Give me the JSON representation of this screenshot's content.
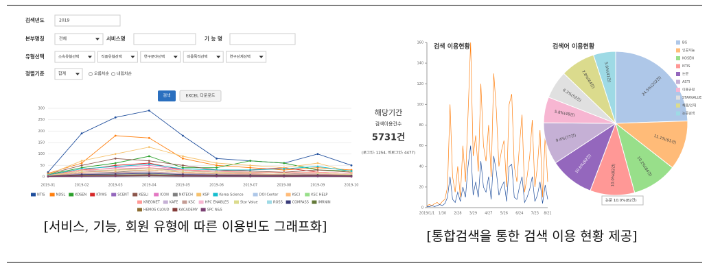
{
  "search_form": {
    "year_label": "검색년도",
    "year_value": "2019",
    "hq_label": "본부명칭",
    "hq_value": "전체",
    "service_label": "서비스명",
    "function_label": "기 능 명",
    "type_label": "유형선택",
    "type_selects": [
      "소속유형선택",
      "직종유형선택",
      "연구분야선택",
      "이용목적선택",
      "연구단계선택"
    ],
    "sort_label": "정렬기준",
    "sort_value": "합계",
    "sort_options": [
      "오름차순",
      "내림차순"
    ],
    "buttons": [
      "검색",
      "EXCEL 다운로드"
    ]
  },
  "left_caption": "[서비스, 기능, 회원 유형에 따른 이용빈도 그래프화]",
  "stats": {
    "period": "해당기간",
    "count_label": "검색이용건수",
    "total": "5731건",
    "breakdown": "(로그인: 1254, 비로그인: 4477)"
  },
  "tooltip": "논문 10.0%(82건)",
  "right_caption": "[통합검색을 통한 검색 이용 현황 제공]",
  "chart_data": [
    {
      "type": "line",
      "categories": [
        "2019-01",
        "2019-02",
        "2019-03",
        "2019-04",
        "2019-05",
        "2019-06",
        "2019-07",
        "2019-08",
        "2019-09",
        "2019-10"
      ],
      "ylim": [
        0,
        300
      ],
      "yticks": [
        0,
        50,
        100,
        150,
        200,
        250,
        300
      ],
      "grid": true,
      "series": [
        {
          "name": "NTIS",
          "color": "#1f4e9c",
          "values": [
            20,
            190,
            260,
            290,
            180,
            80,
            70,
            60,
            100,
            50
          ]
        },
        {
          "name": "NDSL",
          "color": "#ff7f0e",
          "values": [
            15,
            60,
            180,
            170,
            80,
            50,
            40,
            30,
            40,
            30
          ]
        },
        {
          "name": "KOSEN",
          "color": "#2ca02c",
          "values": [
            10,
            40,
            60,
            90,
            40,
            40,
            70,
            60,
            30,
            25
          ]
        },
        {
          "name": "KTrWS",
          "color": "#d62728",
          "values": [
            8,
            30,
            50,
            60,
            30,
            25,
            30,
            40,
            20,
            15
          ]
        },
        {
          "name": "SCENT",
          "color": "#9467bd",
          "values": [
            5,
            20,
            30,
            40,
            25,
            20,
            20,
            15,
            10,
            8
          ]
        },
        {
          "name": "KESLI",
          "color": "#8c564b",
          "values": [
            12,
            50,
            80,
            70,
            50,
            30,
            25,
            20,
            30,
            20
          ]
        },
        {
          "name": "ICON",
          "color": "#e377c2",
          "values": [
            6,
            25,
            40,
            50,
            30,
            20,
            15,
            18,
            12,
            10
          ]
        },
        {
          "name": "NKTECH",
          "color": "#7f7f7f",
          "values": [
            4,
            15,
            20,
            30,
            20,
            15,
            12,
            10,
            8,
            6
          ]
        },
        {
          "name": "KSP",
          "color": "#f5c16c",
          "values": [
            10,
            70,
            100,
            130,
            90,
            60,
            50,
            40,
            60,
            20
          ]
        },
        {
          "name": "Korea Science",
          "color": "#17becf",
          "values": [
            8,
            35,
            45,
            55,
            35,
            30,
            30,
            35,
            45,
            25
          ]
        },
        {
          "name": "DOI Center",
          "color": "#aec7e8",
          "values": [
            3,
            10,
            15,
            20,
            10,
            8,
            6,
            5,
            6,
            4
          ]
        },
        {
          "name": "KSCI",
          "color": "#ffbb78",
          "values": [
            5,
            20,
            25,
            30,
            20,
            15,
            12,
            10,
            10,
            8
          ]
        },
        {
          "name": "KSC HELP",
          "color": "#98df8a",
          "values": [
            2,
            8,
            10,
            12,
            8,
            6,
            5,
            4,
            5,
            3
          ]
        },
        {
          "name": "KREONET",
          "color": "#ff9896",
          "values": [
            6,
            30,
            35,
            40,
            30,
            25,
            20,
            18,
            20,
            15
          ]
        },
        {
          "name": "KAFE",
          "color": "#c5b0d5",
          "values": [
            3,
            12,
            15,
            18,
            12,
            10,
            8,
            7,
            8,
            5
          ]
        },
        {
          "name": "KSC",
          "color": "#c49c94",
          "values": [
            4,
            15,
            18,
            22,
            15,
            12,
            10,
            9,
            10,
            7
          ]
        },
        {
          "name": "HPC ENABLES",
          "color": "#f7b6d2",
          "values": [
            2,
            6,
            8,
            10,
            6,
            5,
            4,
            4,
            5,
            3
          ]
        },
        {
          "name": "Star Value",
          "color": "#dbdb8d",
          "values": [
            5,
            25,
            30,
            35,
            25,
            20,
            18,
            15,
            15,
            10
          ]
        },
        {
          "name": "ROSS",
          "color": "#9edae5",
          "values": [
            1,
            4,
            5,
            6,
            4,
            3,
            3,
            2,
            3,
            2
          ]
        },
        {
          "name": "COMPASS",
          "color": "#393b79",
          "values": [
            3,
            10,
            12,
            15,
            10,
            8,
            7,
            6,
            7,
            5
          ]
        },
        {
          "name": "IMRNIN",
          "color": "#637939",
          "values": [
            2,
            5,
            6,
            8,
            5,
            4,
            4,
            3,
            4,
            2
          ]
        },
        {
          "name": "HEMOS CLOUD",
          "color": "#8c6d31",
          "values": [
            1,
            3,
            4,
            5,
            3,
            3,
            2,
            2,
            3,
            1
          ]
        },
        {
          "name": "KACADEMY",
          "color": "#843c39",
          "values": [
            2,
            6,
            7,
            9,
            6,
            5,
            4,
            4,
            5,
            3
          ]
        },
        {
          "name": "SPC N&S",
          "color": "#7b4173",
          "values": [
            1,
            2,
            3,
            4,
            3,
            2,
            2,
            1,
            2,
            1
          ]
        }
      ]
    },
    {
      "type": "line",
      "title": "검색 이용현황",
      "categories": [
        "2019/1/1",
        null,
        null,
        null,
        null,
        null,
        "1/30",
        null,
        null,
        null,
        null,
        null,
        "2/28",
        null,
        null,
        null,
        null,
        null,
        "3/29",
        null,
        null,
        null,
        null,
        null,
        "4/27",
        null,
        null,
        null,
        null,
        null,
        "5/26",
        null,
        null,
        null,
        null,
        null,
        "6/24",
        null,
        null,
        null,
        null,
        null,
        "7/23",
        null,
        null,
        null,
        null,
        "8/21"
      ],
      "ylim": [
        0,
        160
      ],
      "yticks": [
        0,
        20,
        40,
        60,
        80,
        100,
        120,
        140,
        160
      ],
      "grid": false,
      "series": [
        {
          "color": "#ff7f0e",
          "values": [
            2,
            3,
            2,
            4,
            5,
            3,
            6,
            8,
            20,
            100,
            30,
            15,
            40,
            10,
            60,
            25,
            90,
            160,
            50,
            70,
            35,
            120,
            60,
            45,
            80,
            30,
            130,
            95,
            40,
            55,
            65,
            20,
            100,
            110,
            40,
            25,
            60,
            90,
            15,
            30,
            50,
            85,
            20,
            40,
            75,
            10,
            70,
            25
          ]
        },
        {
          "color": "#1f4e9c",
          "values": [
            1,
            1,
            2,
            1,
            2,
            3,
            2,
            4,
            10,
            30,
            8,
            5,
            15,
            6,
            20,
            10,
            40,
            60,
            12,
            25,
            10,
            45,
            20,
            15,
            30,
            8,
            50,
            35,
            12,
            20,
            25,
            6,
            40,
            42,
            10,
            8,
            20,
            30,
            5,
            10,
            18,
            30,
            6,
            12,
            25,
            4,
            22,
            8
          ]
        }
      ]
    },
    {
      "type": "pie",
      "title": "검색어 이용현황",
      "categories": [
        "BG",
        "인공지능",
        "KOSEN",
        "NTIS",
        "논문",
        "ASTI",
        "이용규정",
        "STARVALUE",
        "채용/인재",
        "논문검색"
      ],
      "values": [
        24.5,
        11.1,
        10.2,
        10.0,
        10.0,
        9.4,
        5.8,
        6.3,
        7.8,
        5.0
      ],
      "value_labels": [
        "24.5%(202건)",
        "11.1%(91건)",
        "10.2%(84건)",
        "10.0%(82건)",
        "10.0%(82건)",
        "9.4%(77건)",
        "5.8%(48건)",
        "6.3%(52건)",
        "7.8%(64건)",
        "5.0%(41건)"
      ],
      "colors": [
        "#aec7e8",
        "#ffbb78",
        "#98df8a",
        "#ff9896",
        "#9467bd",
        "#c5b0d5",
        "#f7b6d2",
        "#e0e0e0",
        "#dbdb8d",
        "#9edae5"
      ]
    }
  ]
}
